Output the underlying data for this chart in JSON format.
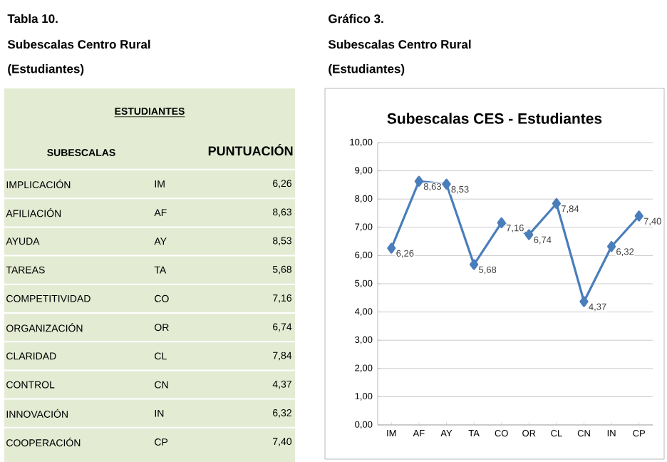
{
  "chart_data": {
    "type": "line",
    "title": "Subescalas CES - Estudiantes",
    "categories": [
      "IM",
      "AF",
      "AY",
      "TA",
      "CO",
      "OR",
      "CL",
      "CN",
      "IN",
      "CP"
    ],
    "values": [
      6.26,
      8.63,
      8.53,
      5.68,
      7.16,
      6.74,
      7.84,
      4.37,
      6.32,
      7.4
    ],
    "value_labels": [
      "6,26",
      "8,63",
      "8,53",
      "5,68",
      "7,16",
      "6,74",
      "7,84",
      "4,37",
      "6,32",
      "7,40"
    ],
    "color": "#4a7ebb",
    "marker": "diamond",
    "line_style": "solid",
    "grid": "y",
    "ylim": [
      0,
      10
    ],
    "yticks": [
      {
        "value": 0,
        "label": "0,00"
      },
      {
        "value": 1,
        "label": "1,00"
      },
      {
        "value": 2,
        "label": "2,00"
      },
      {
        "value": 3,
        "label": "3,00"
      },
      {
        "value": 4,
        "label": "4,00"
      },
      {
        "value": 5,
        "label": "5,00"
      },
      {
        "value": 6,
        "label": "6,00"
      },
      {
        "value": 7,
        "label": "7,00"
      },
      {
        "value": 8,
        "label": "8,00"
      },
      {
        "value": 9,
        "label": "9,00"
      },
      {
        "value": 10,
        "label": "10,00"
      }
    ],
    "annotations": [
      "Tabla 10.",
      "Subescalas Centro Rural",
      "(Estudiantes)",
      "Gráfico 3.",
      "Subescalas Centro Rural",
      "(Estudiantes)",
      "ESTUDIANTES",
      "SUBESCALAS",
      "PUNTUACIÓN",
      "IMPLICACIÓN",
      "AFILIACIÓN",
      "AYUDA",
      "TAREAS",
      "COMPETITIVIDAD",
      "ORGANIZACIÓN",
      "CLARIDAD",
      "CONTROL",
      "INNOVACIÓN",
      "COOPERACIÓN"
    ]
  }
}
